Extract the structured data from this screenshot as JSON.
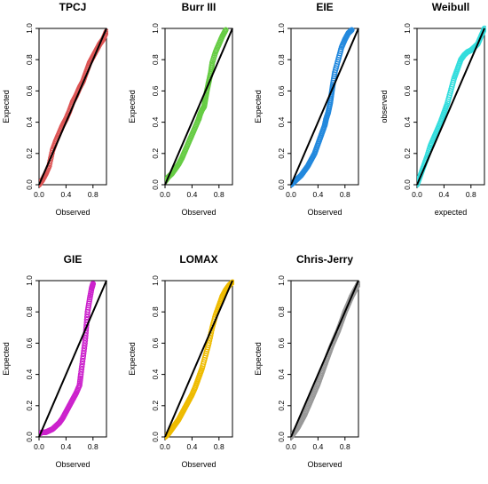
{
  "chart_data": [
    {
      "type": "scatter",
      "title": "TPCJ",
      "xlabel": "Observed",
      "ylabel": "Expected",
      "color": "#dd5555",
      "marker": "open-circle",
      "xlim": [
        0,
        1
      ],
      "ylim": [
        0,
        1
      ],
      "xticks": [
        "0.0",
        "0.4",
        "0.8"
      ],
      "yticks": [
        "0.0",
        "0.2",
        "0.4",
        "0.6",
        "0.8",
        "1.0"
      ],
      "reference_line": {
        "x": [
          0,
          1
        ],
        "y": [
          0,
          1
        ]
      },
      "x": [
        0.0,
        0.05,
        0.1,
        0.15,
        0.2,
        0.25,
        0.3,
        0.35,
        0.4,
        0.45,
        0.5,
        0.55,
        0.6,
        0.65,
        0.7,
        0.75,
        0.8,
        0.85,
        0.9,
        0.95,
        1.0
      ],
      "y": [
        0.0,
        0.03,
        0.07,
        0.12,
        0.22,
        0.28,
        0.33,
        0.38,
        0.42,
        0.47,
        0.53,
        0.57,
        0.62,
        0.66,
        0.72,
        0.78,
        0.82,
        0.86,
        0.9,
        0.93,
        0.98
      ]
    },
    {
      "type": "scatter",
      "title": "Burr III",
      "xlabel": "Observed",
      "ylabel": "Expected",
      "color": "#66cc44",
      "marker": "open-circle",
      "xlim": [
        0,
        1
      ],
      "ylim": [
        0,
        1
      ],
      "xticks": [
        "0.0",
        "0.4",
        "0.8"
      ],
      "yticks": [
        "0.0",
        "0.2",
        "0.4",
        "0.6",
        "0.8",
        "1.0"
      ],
      "reference_line": {
        "x": [
          0,
          1
        ],
        "y": [
          0,
          1
        ]
      },
      "x": [
        0.0,
        0.05,
        0.1,
        0.15,
        0.2,
        0.25,
        0.3,
        0.35,
        0.4,
        0.45,
        0.5,
        0.52,
        0.55,
        0.58,
        0.6,
        0.62,
        0.65,
        0.68,
        0.7,
        0.75,
        0.8,
        0.85,
        0.9
      ],
      "y": [
        0.02,
        0.05,
        0.07,
        0.1,
        0.13,
        0.17,
        0.22,
        0.27,
        0.32,
        0.37,
        0.42,
        0.45,
        0.48,
        0.5,
        0.55,
        0.6,
        0.66,
        0.72,
        0.78,
        0.85,
        0.9,
        0.95,
        0.99
      ]
    },
    {
      "type": "scatter",
      "title": "EIE",
      "xlabel": "Observed",
      "ylabel": "Expected",
      "color": "#2288dd",
      "marker": "open-circle",
      "xlim": [
        0,
        1
      ],
      "ylim": [
        0,
        1
      ],
      "xticks": [
        "0.0",
        "0.4",
        "0.8"
      ],
      "yticks": [
        "0.0",
        "0.2",
        "0.4",
        "0.6",
        "0.8",
        "1.0"
      ],
      "reference_line": {
        "x": [
          0,
          1
        ],
        "y": [
          0,
          1
        ]
      },
      "x": [
        0.0,
        0.05,
        0.1,
        0.15,
        0.2,
        0.25,
        0.3,
        0.35,
        0.4,
        0.45,
        0.5,
        0.52,
        0.55,
        0.58,
        0.6,
        0.62,
        0.65,
        0.7,
        0.75,
        0.8,
        0.85,
        0.9
      ],
      "y": [
        0.0,
        0.02,
        0.04,
        0.06,
        0.09,
        0.12,
        0.16,
        0.2,
        0.26,
        0.32,
        0.38,
        0.42,
        0.46,
        0.52,
        0.58,
        0.64,
        0.72,
        0.8,
        0.88,
        0.93,
        0.97,
        0.99
      ]
    },
    {
      "type": "scatter",
      "title": "Weibull",
      "xlabel": "expected",
      "ylabel": "observed",
      "color": "#33dddd",
      "marker": "open-circle",
      "xlim": [
        0,
        1
      ],
      "ylim": [
        0,
        1
      ],
      "xticks": [
        "0.0",
        "0.4",
        "0.8"
      ],
      "yticks": [
        "0.0",
        "0.2",
        "0.4",
        "0.6",
        "0.8",
        "1.0"
      ],
      "reference_line": {
        "x": [
          0,
          1
        ],
        "y": [
          0,
          1
        ]
      },
      "x": [
        0.0,
        0.05,
        0.1,
        0.15,
        0.2,
        0.25,
        0.3,
        0.35,
        0.4,
        0.45,
        0.5,
        0.55,
        0.6,
        0.65,
        0.7,
        0.75,
        0.8,
        0.85,
        0.9,
        0.95,
        1.0
      ],
      "y": [
        0.0,
        0.06,
        0.12,
        0.18,
        0.25,
        0.3,
        0.35,
        0.4,
        0.46,
        0.52,
        0.6,
        0.68,
        0.74,
        0.8,
        0.83,
        0.85,
        0.86,
        0.88,
        0.9,
        0.95,
        1.0
      ]
    },
    {
      "type": "scatter",
      "title": "GIE",
      "xlabel": "Observed",
      "ylabel": "Expected",
      "color": "#cc22cc",
      "marker": "open-circle",
      "xlim": [
        0,
        1
      ],
      "ylim": [
        0,
        1
      ],
      "xticks": [
        "0.0",
        "0.4",
        "0.8"
      ],
      "yticks": [
        "0.0",
        "0.2",
        "0.4",
        "0.6",
        "0.8",
        "1.0"
      ],
      "reference_line": {
        "x": [
          0,
          1
        ],
        "y": [
          0,
          1
        ]
      },
      "x": [
        0.0,
        0.05,
        0.1,
        0.15,
        0.2,
        0.25,
        0.3,
        0.35,
        0.4,
        0.45,
        0.5,
        0.55,
        0.6,
        0.62,
        0.65,
        0.68,
        0.7,
        0.72,
        0.75,
        0.78,
        0.8
      ],
      "y": [
        0.02,
        0.03,
        0.03,
        0.04,
        0.05,
        0.07,
        0.09,
        0.12,
        0.16,
        0.2,
        0.24,
        0.28,
        0.33,
        0.4,
        0.5,
        0.6,
        0.7,
        0.8,
        0.88,
        0.95,
        0.98
      ]
    },
    {
      "type": "scatter",
      "title": "LOMAX",
      "xlabel": "Observed",
      "ylabel": "Expected",
      "color": "#eebb00",
      "marker": "open-circle",
      "xlim": [
        0,
        1
      ],
      "ylim": [
        0,
        1
      ],
      "xticks": [
        "0.0",
        "0.4",
        "0.8"
      ],
      "yticks": [
        "0.0",
        "0.2",
        "0.4",
        "0.6",
        "0.8",
        "1.0"
      ],
      "reference_line": {
        "x": [
          0,
          1
        ],
        "y": [
          0,
          1
        ]
      },
      "x": [
        0.0,
        0.05,
        0.1,
        0.15,
        0.2,
        0.25,
        0.3,
        0.35,
        0.4,
        0.45,
        0.5,
        0.55,
        0.6,
        0.65,
        0.7,
        0.75,
        0.8,
        0.85,
        0.9,
        0.95,
        1.0
      ],
      "y": [
        0.0,
        0.02,
        0.05,
        0.08,
        0.11,
        0.15,
        0.19,
        0.23,
        0.27,
        0.32,
        0.38,
        0.44,
        0.52,
        0.6,
        0.7,
        0.78,
        0.84,
        0.9,
        0.94,
        0.97,
        0.99
      ]
    },
    {
      "type": "scatter",
      "title": "Chris-Jerry",
      "xlabel": "Observed",
      "ylabel": "Expected",
      "color": "#999999",
      "marker": "open-circle",
      "xlim": [
        0,
        1
      ],
      "ylim": [
        0,
        1
      ],
      "xticks": [
        "0.0",
        "0.4",
        "0.8"
      ],
      "yticks": [
        "0.0",
        "0.2",
        "0.4",
        "0.6",
        "0.8",
        "1.0"
      ],
      "reference_line": {
        "x": [
          0,
          1
        ],
        "y": [
          0,
          1
        ]
      },
      "x": [
        0.0,
        0.05,
        0.1,
        0.15,
        0.2,
        0.25,
        0.3,
        0.35,
        0.4,
        0.45,
        0.5,
        0.55,
        0.6,
        0.65,
        0.7,
        0.75,
        0.8,
        0.85,
        0.9,
        0.95,
        1.0
      ],
      "y": [
        0.0,
        0.03,
        0.06,
        0.1,
        0.14,
        0.19,
        0.24,
        0.29,
        0.34,
        0.4,
        0.46,
        0.52,
        0.58,
        0.63,
        0.68,
        0.74,
        0.8,
        0.85,
        0.9,
        0.94,
        0.98
      ]
    }
  ]
}
